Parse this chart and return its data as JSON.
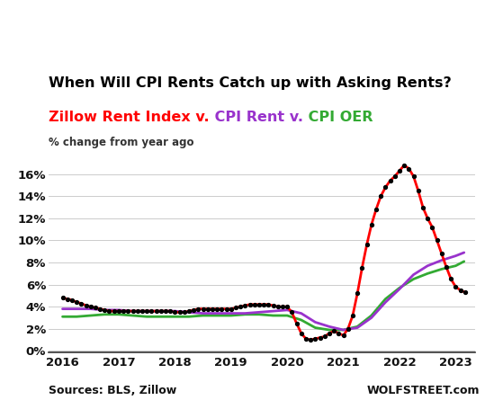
{
  "title": "When Will CPI Rents Catch up with Asking Rents?",
  "subtitle_parts": [
    {
      "text": "Zillow Rent Index v.",
      "color": "#ff0000"
    },
    {
      "text": " CPI Rent v.",
      "color": "#9933cc"
    },
    {
      "text": " CPI OER",
      "color": "#33aa33"
    }
  ],
  "pct_label": "% change from year ago",
  "source_left": "Sources: BLS, Zillow",
  "source_right": "WOLFSTREET.com",
  "ylim": [
    -0.001,
    0.18
  ],
  "yticks": [
    0.0,
    0.02,
    0.04,
    0.06,
    0.08,
    0.1,
    0.12,
    0.14,
    0.16
  ],
  "ytick_labels": [
    "0%",
    "2%",
    "4%",
    "6%",
    "8%",
    "10%",
    "12%",
    "14%",
    "16%"
  ],
  "xlim": [
    2015.75,
    2023.35
  ],
  "xticks": [
    2016,
    2017,
    2018,
    2019,
    2020,
    2021,
    2022,
    2023
  ],
  "background_color": "#ffffff",
  "zillow_color": "#ff0000",
  "cpi_rent_color": "#9933cc",
  "cpi_oer_color": "#33aa33",
  "zillow_data": {
    "x": [
      2016.0,
      2016.083,
      2016.167,
      2016.25,
      2016.333,
      2016.417,
      2016.5,
      2016.583,
      2016.667,
      2016.75,
      2016.833,
      2016.917,
      2017.0,
      2017.083,
      2017.167,
      2017.25,
      2017.333,
      2017.417,
      2017.5,
      2017.583,
      2017.667,
      2017.75,
      2017.833,
      2017.917,
      2018.0,
      2018.083,
      2018.167,
      2018.25,
      2018.333,
      2018.417,
      2018.5,
      2018.583,
      2018.667,
      2018.75,
      2018.833,
      2018.917,
      2019.0,
      2019.083,
      2019.167,
      2019.25,
      2019.333,
      2019.417,
      2019.5,
      2019.583,
      2019.667,
      2019.75,
      2019.833,
      2019.917,
      2020.0,
      2020.083,
      2020.167,
      2020.25,
      2020.333,
      2020.417,
      2020.5,
      2020.583,
      2020.667,
      2020.75,
      2020.833,
      2020.917,
      2021.0,
      2021.083,
      2021.167,
      2021.25,
      2021.333,
      2021.417,
      2021.5,
      2021.583,
      2021.667,
      2021.75,
      2021.833,
      2021.917,
      2022.0,
      2022.083,
      2022.167,
      2022.25,
      2022.333,
      2022.417,
      2022.5,
      2022.583,
      2022.667,
      2022.75,
      2022.833,
      2022.917,
      2023.0,
      2023.083,
      2023.167
    ],
    "y": [
      0.048,
      0.047,
      0.046,
      0.044,
      0.043,
      0.041,
      0.04,
      0.039,
      0.038,
      0.037,
      0.036,
      0.036,
      0.036,
      0.036,
      0.036,
      0.036,
      0.036,
      0.036,
      0.036,
      0.036,
      0.036,
      0.036,
      0.036,
      0.036,
      0.035,
      0.035,
      0.035,
      0.036,
      0.037,
      0.038,
      0.038,
      0.038,
      0.038,
      0.038,
      0.038,
      0.038,
      0.038,
      0.039,
      0.04,
      0.041,
      0.042,
      0.042,
      0.042,
      0.042,
      0.042,
      0.041,
      0.04,
      0.04,
      0.04,
      0.035,
      0.025,
      0.016,
      0.011,
      0.01,
      0.011,
      0.012,
      0.013,
      0.016,
      0.018,
      0.016,
      0.014,
      0.02,
      0.032,
      0.052,
      0.075,
      0.096,
      0.114,
      0.128,
      0.14,
      0.148,
      0.154,
      0.158,
      0.163,
      0.168,
      0.165,
      0.158,
      0.145,
      0.13,
      0.12,
      0.112,
      0.1,
      0.088,
      0.076,
      0.065,
      0.058,
      0.055,
      0.053
    ]
  },
  "cpi_rent_data": {
    "x": [
      2016.0,
      2016.25,
      2016.5,
      2016.75,
      2017.0,
      2017.25,
      2017.5,
      2017.75,
      2018.0,
      2018.25,
      2018.5,
      2018.75,
      2019.0,
      2019.25,
      2019.5,
      2019.75,
      2020.0,
      2020.25,
      2020.5,
      2020.75,
      2021.0,
      2021.25,
      2021.5,
      2021.75,
      2022.0,
      2022.25,
      2022.5,
      2022.75,
      2023.0,
      2023.15
    ],
    "y": [
      0.038,
      0.038,
      0.038,
      0.037,
      0.037,
      0.036,
      0.036,
      0.036,
      0.036,
      0.035,
      0.034,
      0.034,
      0.034,
      0.034,
      0.035,
      0.036,
      0.037,
      0.034,
      0.026,
      0.022,
      0.019,
      0.021,
      0.03,
      0.044,
      0.056,
      0.069,
      0.077,
      0.082,
      0.086,
      0.089
    ]
  },
  "cpi_oer_data": {
    "x": [
      2016.0,
      2016.25,
      2016.5,
      2016.75,
      2017.0,
      2017.25,
      2017.5,
      2017.75,
      2018.0,
      2018.25,
      2018.5,
      2018.75,
      2019.0,
      2019.25,
      2019.5,
      2019.75,
      2020.0,
      2020.25,
      2020.5,
      2020.75,
      2021.0,
      2021.25,
      2021.5,
      2021.75,
      2022.0,
      2022.25,
      2022.5,
      2022.75,
      2023.0,
      2023.15
    ],
    "y": [
      0.031,
      0.031,
      0.032,
      0.033,
      0.033,
      0.032,
      0.031,
      0.031,
      0.031,
      0.031,
      0.032,
      0.032,
      0.032,
      0.033,
      0.033,
      0.032,
      0.032,
      0.028,
      0.021,
      0.019,
      0.019,
      0.022,
      0.032,
      0.047,
      0.057,
      0.065,
      0.07,
      0.074,
      0.077,
      0.081
    ]
  }
}
